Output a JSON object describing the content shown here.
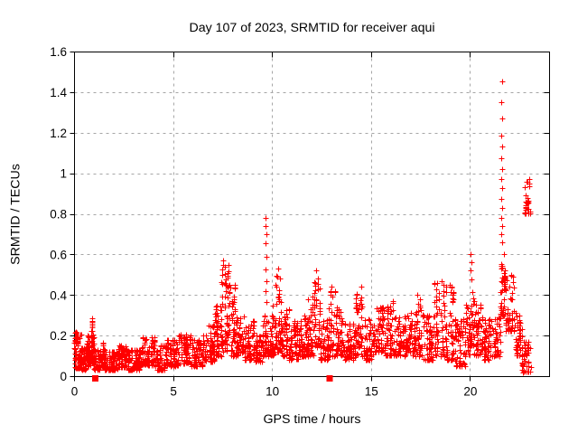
{
  "chart_data": {
    "type": "scatter",
    "title": "Day 107 of 2023, SRMTID for receiver aqui",
    "xlabel": "GPS time / hours",
    "ylabel": "SRMTID / TECUs",
    "xlim": [
      0,
      24
    ],
    "ylim": [
      0,
      1.6
    ],
    "grid": true,
    "legend": "none",
    "xticks": [
      [
        "0",
        0
      ],
      [
        "5",
        5
      ],
      [
        "10",
        10
      ],
      [
        "15",
        15
      ],
      [
        "20",
        20
      ]
    ],
    "yticks": [
      [
        "0",
        0
      ],
      [
        "0.2",
        0.2
      ],
      [
        "0.4",
        0.4
      ],
      [
        "0.6",
        0.6
      ],
      [
        "0.8",
        0.8
      ],
      [
        "1",
        1
      ],
      [
        "1.2",
        1.2
      ],
      [
        "1.4",
        1.4
      ],
      [
        "1.6",
        1.6
      ]
    ],
    "style": {
      "marker_color": "#ff0000",
      "grid_color": "#a6a6a6",
      "axis_color": "#000000",
      "background": "#ffffff"
    },
    "series": [
      {
        "name": "srmtid-plus",
        "marker": "plus",
        "color": "#ff0000",
        "seed": 107,
        "bands_format": [
          "t_start_hours",
          "t_end_hours",
          "y_min_TECUs",
          "y_max_TECUs",
          "n_points"
        ],
        "bands": [
          [
            0.0,
            0.35,
            0.04,
            0.22,
            70
          ],
          [
            0.35,
            0.65,
            0.03,
            0.14,
            50
          ],
          [
            0.65,
            0.85,
            0.05,
            0.2,
            40
          ],
          [
            0.85,
            1.0,
            0.06,
            0.27,
            40
          ],
          [
            1.0,
            1.35,
            0.03,
            0.13,
            40
          ],
          [
            1.35,
            1.55,
            0.05,
            0.17,
            30
          ],
          [
            1.55,
            2.2,
            0.03,
            0.12,
            80
          ],
          [
            2.2,
            2.7,
            0.04,
            0.15,
            60
          ],
          [
            2.7,
            3.4,
            0.03,
            0.13,
            80
          ],
          [
            3.4,
            4.2,
            0.05,
            0.19,
            90
          ],
          [
            4.2,
            4.6,
            0.03,
            0.15,
            45
          ],
          [
            4.6,
            5.3,
            0.05,
            0.18,
            75
          ],
          [
            5.3,
            5.9,
            0.06,
            0.21,
            65
          ],
          [
            5.9,
            6.5,
            0.05,
            0.18,
            65
          ],
          [
            6.5,
            7.1,
            0.07,
            0.25,
            65
          ],
          [
            7.1,
            7.45,
            0.1,
            0.38,
            45
          ],
          [
            7.45,
            7.8,
            0.12,
            0.55,
            55
          ],
          [
            7.8,
            8.15,
            0.1,
            0.45,
            50
          ],
          [
            8.15,
            8.6,
            0.1,
            0.3,
            50
          ],
          [
            8.6,
            9.1,
            0.08,
            0.27,
            55
          ],
          [
            9.1,
            9.55,
            0.07,
            0.22,
            50
          ],
          [
            9.55,
            9.8,
            0.1,
            0.3,
            30
          ],
          [
            9.8,
            10.1,
            0.1,
            0.35,
            40
          ],
          [
            10.1,
            10.45,
            0.12,
            0.5,
            50
          ],
          [
            10.45,
            10.85,
            0.1,
            0.33,
            50
          ],
          [
            10.85,
            11.35,
            0.08,
            0.27,
            60
          ],
          [
            11.35,
            11.75,
            0.1,
            0.3,
            50
          ],
          [
            11.75,
            12.1,
            0.1,
            0.4,
            45
          ],
          [
            12.1,
            12.45,
            0.13,
            0.5,
            45
          ],
          [
            12.45,
            12.85,
            0.08,
            0.28,
            45
          ],
          [
            12.85,
            13.25,
            0.1,
            0.42,
            45
          ],
          [
            13.25,
            13.65,
            0.1,
            0.34,
            45
          ],
          [
            13.65,
            14.2,
            0.08,
            0.26,
            60
          ],
          [
            14.2,
            14.7,
            0.1,
            0.42,
            55
          ],
          [
            14.7,
            15.15,
            0.08,
            0.28,
            50
          ],
          [
            15.15,
            15.65,
            0.12,
            0.34,
            55
          ],
          [
            15.65,
            16.2,
            0.1,
            0.36,
            55
          ],
          [
            16.2,
            17.0,
            0.1,
            0.3,
            85
          ],
          [
            17.0,
            17.6,
            0.1,
            0.38,
            60
          ],
          [
            17.6,
            18.2,
            0.08,
            0.3,
            60
          ],
          [
            18.2,
            18.75,
            0.1,
            0.46,
            60
          ],
          [
            18.75,
            19.25,
            0.08,
            0.44,
            55
          ],
          [
            19.25,
            19.75,
            0.05,
            0.28,
            50
          ],
          [
            19.75,
            20.0,
            0.1,
            0.35,
            30
          ],
          [
            20.0,
            20.2,
            0.15,
            0.48,
            30
          ],
          [
            20.2,
            20.7,
            0.1,
            0.35,
            55
          ],
          [
            20.7,
            21.25,
            0.08,
            0.28,
            55
          ],
          [
            21.25,
            21.55,
            0.1,
            0.3,
            35
          ],
          [
            21.55,
            21.8,
            0.3,
            0.62,
            45
          ],
          [
            21.8,
            22.25,
            0.22,
            0.5,
            50
          ],
          [
            22.25,
            22.65,
            0.1,
            0.32,
            40
          ],
          [
            22.6,
            23.1,
            0.02,
            0.17,
            45
          ],
          [
            22.75,
            23.05,
            0.8,
            0.97,
            30
          ]
        ],
        "outlier_points": [
          [
            0.9,
            0.285
          ],
          [
            0.9,
            0.26
          ],
          [
            0.92,
            0.24
          ],
          [
            7.55,
            0.57
          ],
          [
            7.6,
            0.54
          ],
          [
            7.5,
            0.5
          ],
          [
            9.68,
            0.78
          ],
          [
            9.68,
            0.74
          ],
          [
            9.7,
            0.7
          ],
          [
            9.68,
            0.655
          ],
          [
            9.7,
            0.59
          ],
          [
            9.68,
            0.525
          ],
          [
            9.7,
            0.47
          ],
          [
            9.68,
            0.42
          ],
          [
            9.7,
            0.365
          ],
          [
            10.3,
            0.53
          ],
          [
            10.28,
            0.49
          ],
          [
            12.25,
            0.52
          ],
          [
            12.3,
            0.48
          ],
          [
            13.0,
            0.44
          ],
          [
            14.5,
            0.44
          ],
          [
            16.1,
            0.37
          ],
          [
            17.35,
            0.4
          ],
          [
            18.55,
            0.47
          ],
          [
            19.0,
            0.45
          ],
          [
            20.05,
            0.6
          ],
          [
            20.07,
            0.56
          ],
          [
            20.05,
            0.52
          ],
          [
            21.62,
            1.455
          ],
          [
            21.6,
            1.35
          ],
          [
            21.63,
            1.27
          ],
          [
            21.6,
            1.185
          ],
          [
            21.62,
            1.13
          ],
          [
            21.6,
            1.075
          ],
          [
            21.63,
            1.02
          ],
          [
            21.6,
            0.97
          ],
          [
            21.62,
            0.925
          ],
          [
            21.6,
            0.875
          ],
          [
            21.63,
            0.83
          ],
          [
            21.6,
            0.78
          ],
          [
            21.62,
            0.74
          ],
          [
            21.6,
            0.7
          ],
          [
            21.63,
            0.66
          ]
        ]
      },
      {
        "name": "flag-squares",
        "marker": "filled-square",
        "color": "#ff0000",
        "points": [
          [
            1.05,
            0
          ],
          [
            12.9,
            0
          ]
        ]
      }
    ]
  }
}
